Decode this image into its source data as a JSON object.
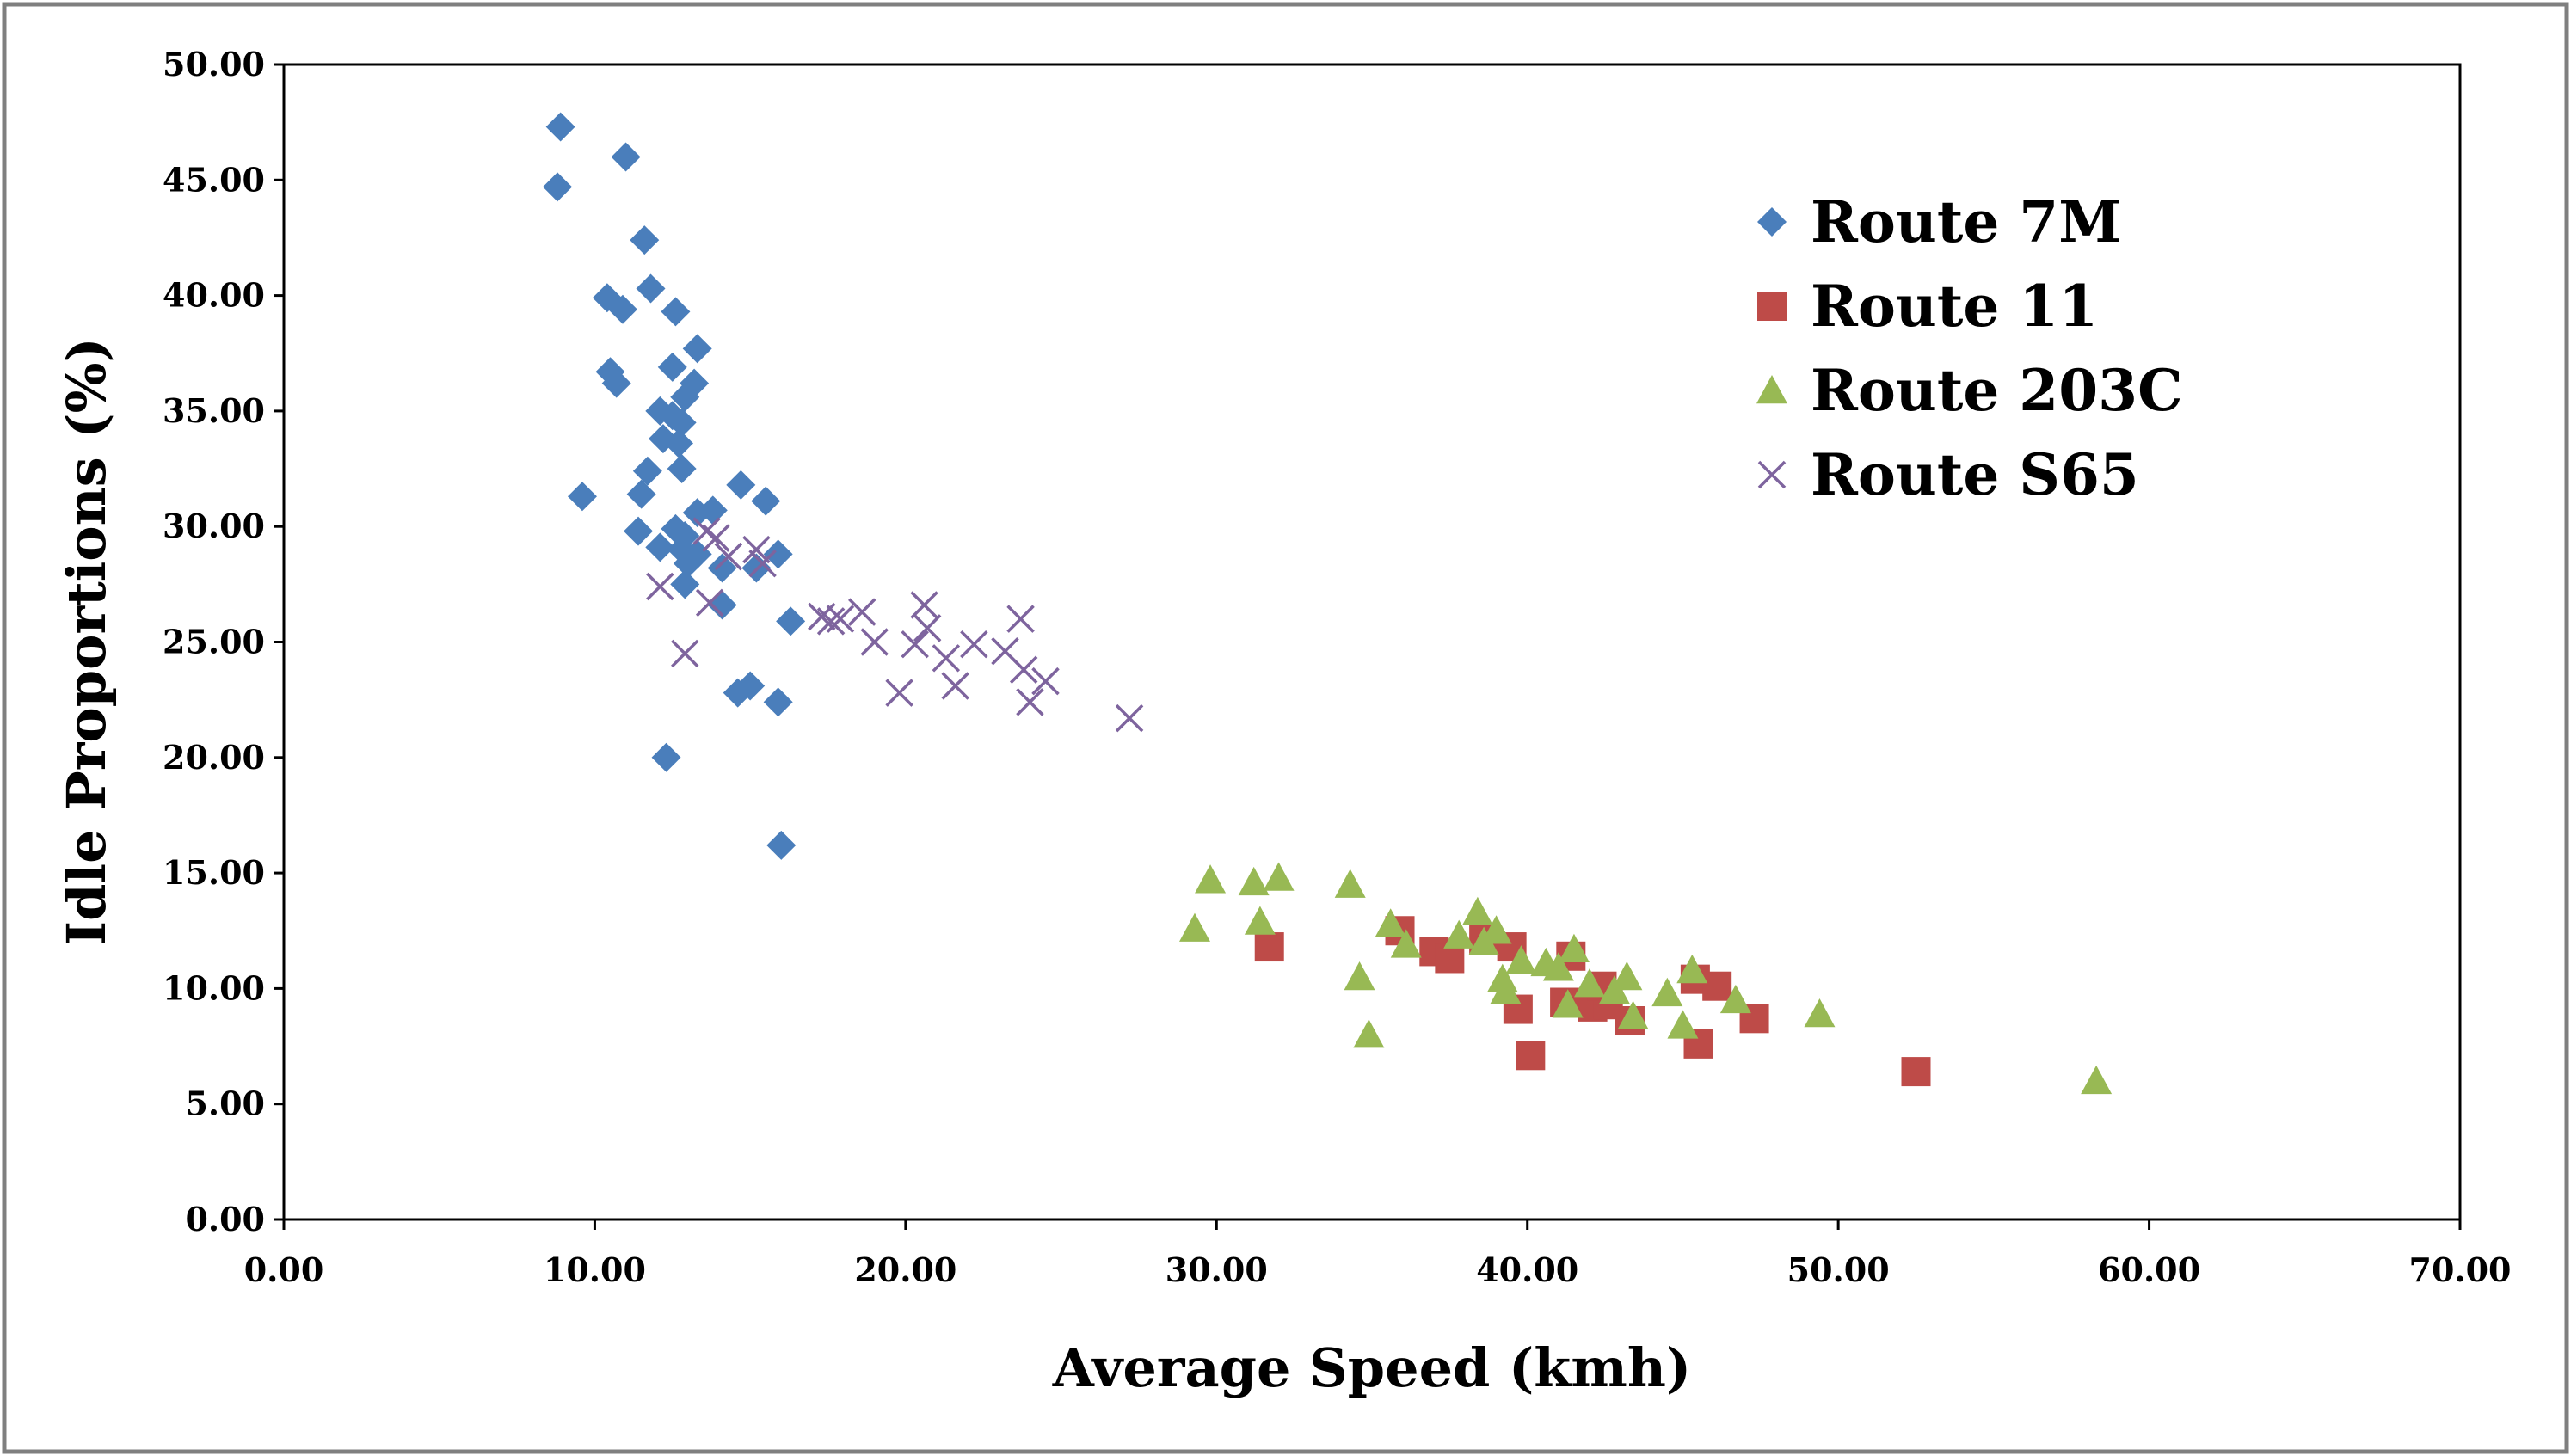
{
  "chart_data": {
    "type": "scatter",
    "xlabel": "Average Speed (kmh)",
    "ylabel": "Idle Proportions (%)",
    "xlim": [
      0,
      70
    ],
    "ylim": [
      0,
      50
    ],
    "x_ticks": [
      "0.00",
      "10.00",
      "20.00",
      "30.00",
      "40.00",
      "50.00",
      "60.00",
      "70.00"
    ],
    "y_ticks": [
      "0.00",
      "5.00",
      "10.00",
      "15.00",
      "20.00",
      "25.00",
      "30.00",
      "35.00",
      "40.00",
      "45.00",
      "50.00"
    ],
    "grid": false,
    "legend_position": "top-right",
    "series": [
      {
        "name": "Route 7M",
        "marker": "diamond",
        "color": "#4a7ebb",
        "points": [
          [
            8.9,
            47.3
          ],
          [
            8.8,
            44.7
          ],
          [
            11.0,
            46.0
          ],
          [
            11.6,
            42.4
          ],
          [
            11.8,
            40.3
          ],
          [
            10.4,
            39.9
          ],
          [
            10.9,
            39.4
          ],
          [
            12.6,
            39.3
          ],
          [
            13.3,
            37.7
          ],
          [
            12.5,
            36.9
          ],
          [
            10.5,
            36.7
          ],
          [
            10.7,
            36.2
          ],
          [
            13.2,
            36.2
          ],
          [
            12.9,
            35.6
          ],
          [
            12.1,
            35.0
          ],
          [
            12.5,
            34.8
          ],
          [
            12.8,
            34.5
          ],
          [
            12.2,
            33.8
          ],
          [
            12.7,
            33.6
          ],
          [
            12.8,
            32.5
          ],
          [
            11.7,
            32.4
          ],
          [
            14.7,
            31.8
          ],
          [
            9.6,
            31.3
          ],
          [
            11.5,
            31.4
          ],
          [
            15.5,
            31.1
          ],
          [
            13.8,
            30.7
          ],
          [
            13.3,
            30.6
          ],
          [
            11.4,
            29.8
          ],
          [
            12.6,
            29.9
          ],
          [
            12.9,
            29.6
          ],
          [
            12.1,
            29.1
          ],
          [
            12.8,
            29.0
          ],
          [
            13.3,
            28.8
          ],
          [
            15.9,
            28.8
          ],
          [
            13.0,
            28.4
          ],
          [
            14.1,
            28.2
          ],
          [
            15.2,
            28.2
          ],
          [
            12.9,
            27.5
          ],
          [
            14.1,
            26.6
          ],
          [
            16.3,
            25.9
          ],
          [
            14.6,
            22.8
          ],
          [
            15.0,
            23.1
          ],
          [
            15.9,
            22.4
          ],
          [
            12.3,
            20.0
          ],
          [
            16.0,
            16.2
          ]
        ]
      },
      {
        "name": "Route 11",
        "marker": "square",
        "color": "#be4b48",
        "points": [
          [
            31.7,
            11.8
          ],
          [
            35.9,
            12.5
          ],
          [
            37.0,
            11.6
          ],
          [
            37.5,
            11.3
          ],
          [
            38.6,
            12.1
          ],
          [
            39.5,
            11.8
          ],
          [
            39.7,
            9.1
          ],
          [
            40.1,
            7.1
          ],
          [
            41.4,
            11.4
          ],
          [
            41.2,
            9.4
          ],
          [
            42.1,
            9.2
          ],
          [
            42.6,
            9.3
          ],
          [
            42.4,
            10.1
          ],
          [
            43.3,
            8.6
          ],
          [
            45.4,
            10.4
          ],
          [
            46.1,
            10.1
          ],
          [
            45.5,
            7.6
          ],
          [
            47.3,
            8.7
          ],
          [
            52.5,
            6.4
          ]
        ]
      },
      {
        "name": "Route 203C",
        "marker": "triangle",
        "color": "#98b954",
        "points": [
          [
            29.3,
            12.6
          ],
          [
            29.8,
            14.7
          ],
          [
            31.2,
            14.6
          ],
          [
            31.4,
            12.9
          ],
          [
            32.0,
            14.8
          ],
          [
            34.3,
            14.5
          ],
          [
            34.6,
            10.5
          ],
          [
            34.9,
            8.0
          ],
          [
            35.6,
            12.8
          ],
          [
            36.1,
            11.9
          ],
          [
            37.8,
            12.3
          ],
          [
            38.4,
            13.3
          ],
          [
            38.6,
            12.0
          ],
          [
            39.0,
            12.5
          ],
          [
            39.2,
            10.4
          ],
          [
            39.3,
            9.9
          ],
          [
            39.8,
            11.2
          ],
          [
            40.6,
            11.1
          ],
          [
            41.0,
            10.9
          ],
          [
            41.3,
            9.3
          ],
          [
            41.5,
            11.7
          ],
          [
            42.0,
            10.2
          ],
          [
            42.8,
            9.9
          ],
          [
            43.2,
            10.5
          ],
          [
            43.4,
            8.8
          ],
          [
            44.5,
            9.8
          ],
          [
            45.0,
            8.4
          ],
          [
            45.3,
            10.8
          ],
          [
            46.7,
            9.5
          ],
          [
            49.4,
            8.9
          ],
          [
            58.3,
            6.0
          ]
        ]
      },
      {
        "name": "Route S65",
        "marker": "x",
        "color": "#7e649e",
        "points": [
          [
            12.1,
            27.4
          ],
          [
            12.9,
            24.5
          ],
          [
            13.7,
            26.7
          ],
          [
            13.9,
            29.5
          ],
          [
            13.6,
            29.8
          ],
          [
            14.3,
            28.7
          ],
          [
            15.2,
            29.0
          ],
          [
            15.4,
            28.4
          ],
          [
            17.3,
            26.1
          ],
          [
            17.6,
            25.9
          ],
          [
            17.9,
            26.0
          ],
          [
            18.6,
            26.3
          ],
          [
            19.0,
            25.0
          ],
          [
            19.8,
            22.8
          ],
          [
            20.3,
            24.9
          ],
          [
            20.6,
            26.6
          ],
          [
            20.7,
            25.6
          ],
          [
            21.3,
            24.3
          ],
          [
            21.6,
            23.1
          ],
          [
            22.2,
            24.9
          ],
          [
            23.2,
            24.6
          ],
          [
            23.7,
            26.0
          ],
          [
            23.8,
            23.8
          ],
          [
            24.0,
            22.4
          ],
          [
            24.5,
            23.3
          ],
          [
            27.2,
            21.7
          ]
        ]
      }
    ]
  }
}
